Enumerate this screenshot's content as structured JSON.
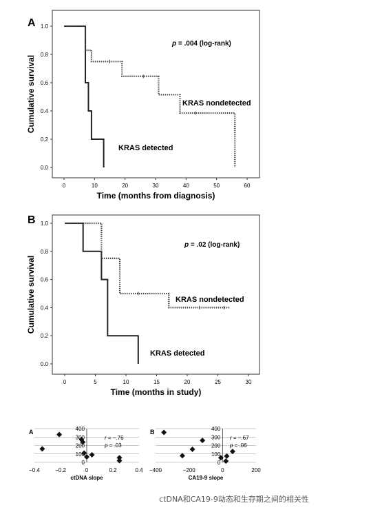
{
  "chart_data": [
    {
      "type": "line",
      "panel_label": "A",
      "ylabel": "Cumulative survival",
      "xlabel": "Time (months from diagnosis)",
      "xlim": [
        0,
        60
      ],
      "ylim": [
        0,
        1
      ],
      "xticks": [
        "0",
        "10",
        "20",
        "30",
        "40",
        "50",
        "60"
      ],
      "yticks": [
        "0.0",
        "0.2",
        "0.4",
        "0.6",
        "0.8",
        "1.0"
      ],
      "annotation": {
        "p": "p",
        "rest": " = .004 (log-rank)"
      },
      "series": [
        {
          "name": "KRAS detected",
          "style": "solid",
          "steps": [
            [
              0,
              1.0
            ],
            [
              7,
              0.6
            ],
            [
              8,
              0.4
            ],
            [
              9,
              0.2
            ],
            [
              13,
              0.0
            ]
          ],
          "end": 13,
          "censored": []
        },
        {
          "name": "KRAS nondetected",
          "style": "dotted",
          "steps": [
            [
              0,
              1.0
            ],
            [
              7,
              0.83
            ],
            [
              9,
              0.75
            ],
            [
              19,
              0.645
            ],
            [
              31,
              0.515
            ],
            [
              38,
              0.385
            ],
            [
              56,
              0.0
            ]
          ],
          "end": 56,
          "censored": [
            15,
            26,
            43
          ]
        }
      ]
    },
    {
      "type": "line",
      "panel_label": "B",
      "ylabel": "Cumulative survival",
      "xlabel": "Time (months in study)",
      "xlim": [
        0,
        30
      ],
      "ylim": [
        0,
        1
      ],
      "xticks": [
        "0",
        "5",
        "10",
        "15",
        "20",
        "25",
        "30"
      ],
      "yticks": [
        "0.0",
        "0.2",
        "0.4",
        "0.6",
        "0.8",
        "1.0"
      ],
      "annotation": {
        "p": "p",
        "rest": " = .02 (log-rank)"
      },
      "series": [
        {
          "name": "KRAS detected",
          "style": "solid",
          "steps": [
            [
              0,
              1.0
            ],
            [
              3,
              0.8
            ],
            [
              6,
              0.6
            ],
            [
              7,
              0.2
            ],
            [
              12,
              0.0
            ]
          ],
          "end": 12,
          "censored": []
        },
        {
          "name": "KRAS nondetected",
          "style": "dotted",
          "steps": [
            [
              0,
              1.0
            ],
            [
              6,
              0.75
            ],
            [
              9,
              0.5
            ],
            [
              17,
              0.4
            ]
          ],
          "end": 27,
          "censored": [
            12,
            22,
            26
          ]
        }
      ]
    },
    {
      "type": "scatter",
      "panel_label": "A",
      "xlabel": "ctDNA slope",
      "xlim": [
        -0.4,
        0.4
      ],
      "ylim": [
        0,
        400
      ],
      "xticks": [
        "−0.4",
        "−0.2",
        "0",
        "0.2",
        "0.4"
      ],
      "yticks": [
        "0",
        "100",
        "200",
        "300",
        "400"
      ],
      "annotation": {
        "r_label": "r",
        "r_value": " = −.76",
        "p_label": "p",
        "p_value": " = .03"
      },
      "points": [
        [
          -0.34,
          160
        ],
        [
          -0.21,
          330
        ],
        [
          -0.04,
          270
        ],
        [
          -0.03,
          240
        ],
        [
          -0.02,
          110
        ],
        [
          0.0,
          65
        ],
        [
          0.04,
          90
        ],
        [
          0.25,
          55
        ],
        [
          0.25,
          20
        ]
      ]
    },
    {
      "type": "scatter",
      "panel_label": "B",
      "xlabel": "CA19-9 slope",
      "xlim": [
        -400,
        200
      ],
      "ylim": [
        0,
        400
      ],
      "xticks": [
        "−400",
        "−200",
        "0",
        "200"
      ],
      "yticks": [
        "0",
        "100",
        "200",
        "300",
        "400"
      ],
      "annotation": {
        "r_label": "r",
        "r_value": " = −.67",
        "p_label": "p",
        "p_value": " = .06"
      },
      "points": [
        [
          -350,
          355
        ],
        [
          -240,
          80
        ],
        [
          -180,
          155
        ],
        [
          -120,
          260
        ],
        [
          -10,
          55
        ],
        [
          20,
          15
        ],
        [
          25,
          75
        ],
        [
          60,
          130
        ]
      ]
    }
  ],
  "caption": "ctDNA和CA19-9动态和生存期之间的相关性"
}
